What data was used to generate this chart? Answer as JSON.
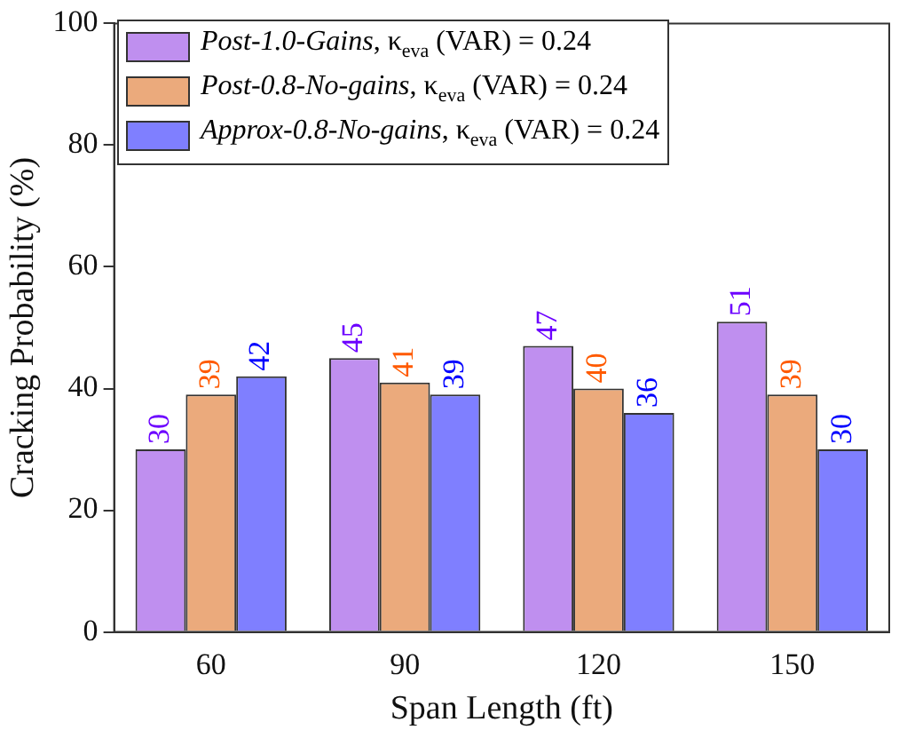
{
  "chart_data": {
    "type": "bar",
    "xlabel": "Span Length (ft)",
    "ylabel": "Cracking Probability (%)",
    "categories": [
      "60",
      "90",
      "120",
      "150"
    ],
    "series": [
      {
        "name": "Post-1.0-Gains, κ$_{eva}$ (VAR) = 0.24",
        "color": "#bf8fef",
        "values": [
          30,
          45,
          47,
          51
        ]
      },
      {
        "name": "Post-0.8-No-gains, κ$_{eva}$ (VAR) = 0.24",
        "color": "#ebaa7c",
        "values": [
          39,
          41,
          40,
          39
        ]
      },
      {
        "name": "Approx-0.8-No-gains, κ$_{eva}$ (VAR) = 0.24",
        "color": "#7f7fff",
        "values": [
          42,
          39,
          36,
          30
        ]
      }
    ],
    "ylim": [
      0,
      100
    ],
    "yticks": [
      0,
      20,
      40,
      60,
      80,
      100
    ],
    "grid": false,
    "legend": "top left",
    "data_labels": true
  }
}
